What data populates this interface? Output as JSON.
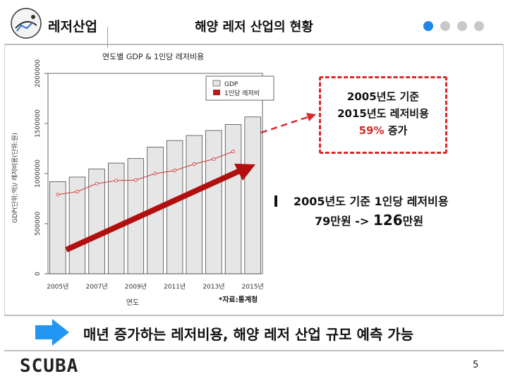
{
  "header": {
    "section_title": "레저산업",
    "slide_title": "해양 레저 산업의 현황",
    "logo_icon": "diving-logo-icon",
    "nav_dots": [
      "#1e88e5",
      "#c8c8c8",
      "#c8c8c8",
      "#c8c8c8"
    ]
  },
  "chart_data": {
    "type": "bar",
    "title": "연도별 GDP & 1인당 레저비용",
    "xlabel": "연도",
    "ylabel": "GDP(단위:억)/ 레저비용(단위:원)",
    "categories": [
      "2005년",
      "2006년",
      "2007년",
      "2008년",
      "2009년",
      "2010년",
      "2011년",
      "2012년",
      "2013년",
      "2014년",
      "2015년"
    ],
    "x_tick_labels": [
      "2005년",
      "2007년",
      "2009년",
      "2011년",
      "2013년",
      "2015년"
    ],
    "y_tick_labels": [
      "0",
      "500000",
      "1000000",
      "1500000",
      "2000000"
    ],
    "ylim": [
      0,
      2000000
    ],
    "series": [
      {
        "name": "GDP",
        "type": "bar",
        "color": "#e6e6e6",
        "values": [
          920000,
          965000,
          1045000,
          1105000,
          1150000,
          1265000,
          1330000,
          1380000,
          1430000,
          1490000,
          1565000
        ]
      },
      {
        "name": "1인당 레저비",
        "type": "line",
        "color": "#cc3333",
        "values": [
          790000,
          820000,
          900000,
          930000,
          935000,
          1000000,
          1030000,
          1095000,
          1145000,
          1220000,
          1260000
        ]
      }
    ],
    "legend": "top-right",
    "grid": false,
    "source": "*자료:통계청"
  },
  "callout": {
    "line1": "2005년도 기준",
    "line2": "2015년도 레저비용",
    "percent": "59%",
    "suffix": " 증가"
  },
  "right_text": {
    "line1": "2005년도 기준 1인당 레저비용",
    "v1": "79만원",
    "arrow": " -> ",
    "v2": "126",
    "unit": "만원"
  },
  "banner": {
    "text": "매년 증가하는 레저비용, 해양 레저 산업 규모 예측 가능",
    "accent": "#2196f3"
  },
  "footer": {
    "brand": "SCUBA",
    "page": "5"
  }
}
